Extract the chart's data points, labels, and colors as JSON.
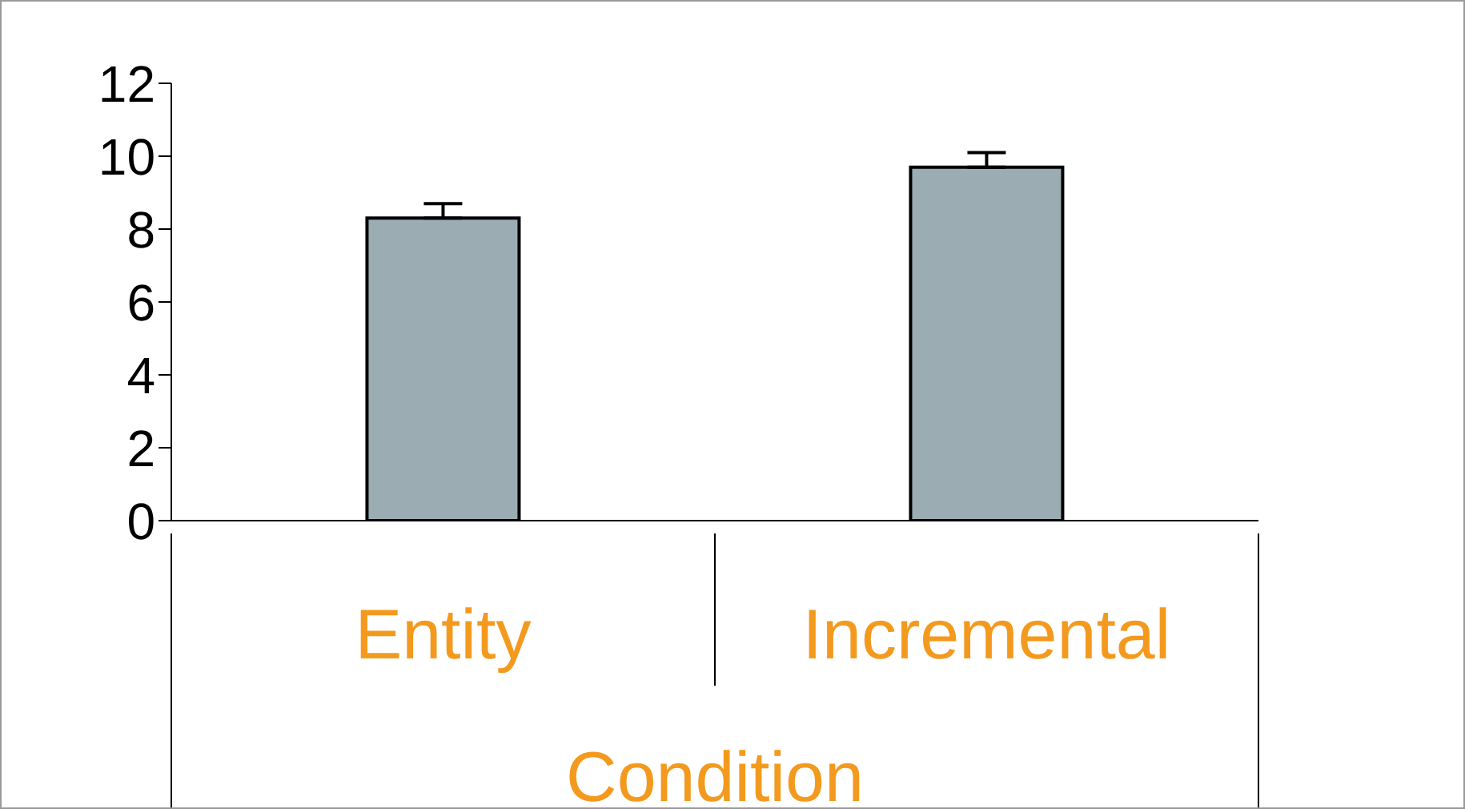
{
  "chart_data": {
    "type": "bar",
    "xlabel": "Condition",
    "categories": [
      "Entity",
      "Incremental"
    ],
    "values": [
      8.3,
      9.7
    ],
    "errors": [
      [
        8.3,
        8.7
      ],
      [
        9.7,
        10.1
      ]
    ],
    "color": "#9bacb2",
    "ylim": [
      0,
      12
    ],
    "yticks": [
      0,
      2,
      4,
      6,
      8,
      10,
      12
    ]
  }
}
